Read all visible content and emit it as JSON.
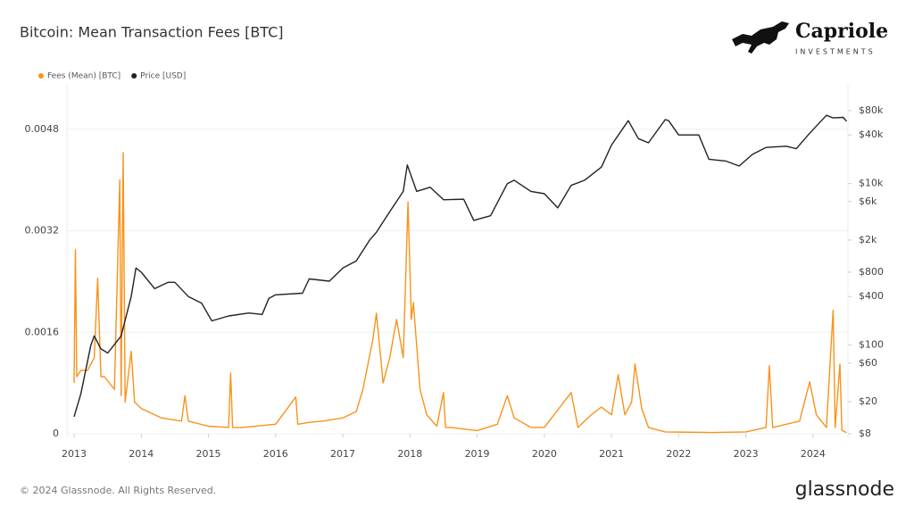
{
  "chart_data": {
    "type": "line",
    "title": "Bitcoin: Mean Transaction Fees [BTC]",
    "logo": {
      "name": "Capriole",
      "sub": "INVESTMENTS"
    },
    "footer": "© 2024 Glassnode. All Rights Reserved.",
    "brand": "glassnode",
    "xlim": [
      2012.9,
      2024.52
    ],
    "xticks": [
      2013,
      2014,
      2015,
      2016,
      2017,
      2018,
      2019,
      2020,
      2021,
      2022,
      2023,
      2024
    ],
    "ylim": [
      0,
      0.0055
    ],
    "yticks": [
      0,
      0.0016,
      0.0032,
      0.0048
    ],
    "y2lim": [
      8,
      167000
    ],
    "y2scale": "log",
    "y2ticks": [
      {
        "value": 8,
        "label": "$8"
      },
      {
        "value": 20,
        "label": "$20"
      },
      {
        "value": 60,
        "label": "$60"
      },
      {
        "value": 100,
        "label": "$100"
      },
      {
        "value": 400,
        "label": "$400"
      },
      {
        "value": 800,
        "label": "$800"
      },
      {
        "value": 2000,
        "label": "$2k"
      },
      {
        "value": 6000,
        "label": "$6k"
      },
      {
        "value": 10000,
        "label": "$10k"
      },
      {
        "value": 40000,
        "label": "$40k"
      },
      {
        "value": 80000,
        "label": "$80k"
      }
    ],
    "grid": true,
    "legend": "top-left",
    "series": [
      {
        "name": "Fees (Mean) [BTC]",
        "color": "#f7931a",
        "x": [
          2013.0,
          2013.02,
          2013.04,
          2013.1,
          2013.2,
          2013.3,
          2013.35,
          2013.4,
          2013.45,
          2013.6,
          2013.68,
          2013.7,
          2013.73,
          2013.76,
          2013.85,
          2013.9,
          2014.0,
          2014.3,
          2014.6,
          2014.65,
          2014.7,
          2015.0,
          2015.3,
          2015.33,
          2015.36,
          2015.5,
          2016.0,
          2016.3,
          2016.33,
          2016.5,
          2016.7,
          2017.0,
          2017.2,
          2017.3,
          2017.45,
          2017.5,
          2017.6,
          2017.7,
          2017.8,
          2017.9,
          2017.97,
          2018.02,
          2018.05,
          2018.15,
          2018.25,
          2018.4,
          2018.5,
          2018.53,
          2018.6,
          2019.0,
          2019.3,
          2019.45,
          2019.55,
          2019.8,
          2020.0,
          2020.4,
          2020.5,
          2020.7,
          2020.85,
          2021.0,
          2021.1,
          2021.2,
          2021.3,
          2021.35,
          2021.45,
          2021.55,
          2021.8,
          2022.5,
          2023.0,
          2023.3,
          2023.35,
          2023.4,
          2023.8,
          2023.95,
          2024.05,
          2024.2,
          2024.3,
          2024.33,
          2024.4,
          2024.43,
          2024.5
        ],
        "values": [
          0.0008,
          0.0029,
          0.0009,
          0.001,
          0.001,
          0.0012,
          0.00245,
          0.0009,
          0.0009,
          0.0007,
          0.004,
          0.0006,
          0.00443,
          0.0005,
          0.0013,
          0.0005,
          0.0004,
          0.00025,
          0.0002,
          0.0006,
          0.0002,
          0.00012,
          0.0001,
          0.00096,
          0.0001,
          0.0001,
          0.00015,
          0.00058,
          0.00015,
          0.00018,
          0.0002,
          0.00025,
          0.00035,
          0.0007,
          0.0015,
          0.0019,
          0.0008,
          0.0012,
          0.0018,
          0.0012,
          0.00365,
          0.0018,
          0.00207,
          0.0007,
          0.0003,
          0.00012,
          0.00065,
          0.0001,
          0.0001,
          5e-05,
          0.00015,
          0.0006,
          0.00025,
          0.0001,
          0.0001,
          0.00065,
          0.0001,
          0.0003,
          0.00042,
          0.0003,
          0.00093,
          0.0003,
          0.0005,
          0.0011,
          0.0004,
          0.0001,
          3e-05,
          2e-05,
          3e-05,
          0.0001,
          0.00107,
          0.0001,
          0.0002,
          0.00082,
          0.0003,
          0.0001,
          0.00195,
          0.0001,
          0.0011,
          5e-05,
          2e-05
        ]
      },
      {
        "name": "Price [USD]",
        "color": "#222222",
        "axis": "y2",
        "x": [
          2013.0,
          2013.1,
          2013.25,
          2013.3,
          2013.4,
          2013.5,
          2013.7,
          2013.85,
          2013.92,
          2014.0,
          2014.2,
          2014.4,
          2014.5,
          2014.7,
          2014.9,
          2015.05,
          2015.3,
          2015.6,
          2015.8,
          2015.9,
          2016.0,
          2016.4,
          2016.5,
          2016.8,
          2017.0,
          2017.2,
          2017.4,
          2017.5,
          2017.7,
          2017.9,
          2017.96,
          2018.1,
          2018.3,
          2018.5,
          2018.8,
          2018.95,
          2019.2,
          2019.45,
          2019.55,
          2019.8,
          2020.0,
          2020.2,
          2020.4,
          2020.6,
          2020.85,
          2021.0,
          2021.25,
          2021.4,
          2021.55,
          2021.8,
          2021.85,
          2022.0,
          2022.3,
          2022.45,
          2022.7,
          2022.9,
          2023.1,
          2023.3,
          2023.6,
          2023.75,
          2023.95,
          2024.2,
          2024.3,
          2024.45,
          2024.5
        ],
        "values": [
          13,
          25,
          100,
          130,
          90,
          80,
          130,
          400,
          900,
          800,
          500,
          600,
          600,
          400,
          330,
          200,
          230,
          250,
          240,
          380,
          420,
          440,
          660,
          620,
          900,
          1100,
          2000,
          2500,
          4500,
          8000,
          17000,
          8000,
          9000,
          6300,
          6400,
          3500,
          4000,
          10000,
          11000,
          8000,
          7500,
          5000,
          9500,
          11000,
          16000,
          30000,
          60000,
          36000,
          32000,
          62000,
          60000,
          40000,
          40000,
          20000,
          19000,
          16500,
          23000,
          28000,
          29000,
          27000,
          42000,
          70000,
          65000,
          66000,
          59000
        ]
      }
    ]
  }
}
